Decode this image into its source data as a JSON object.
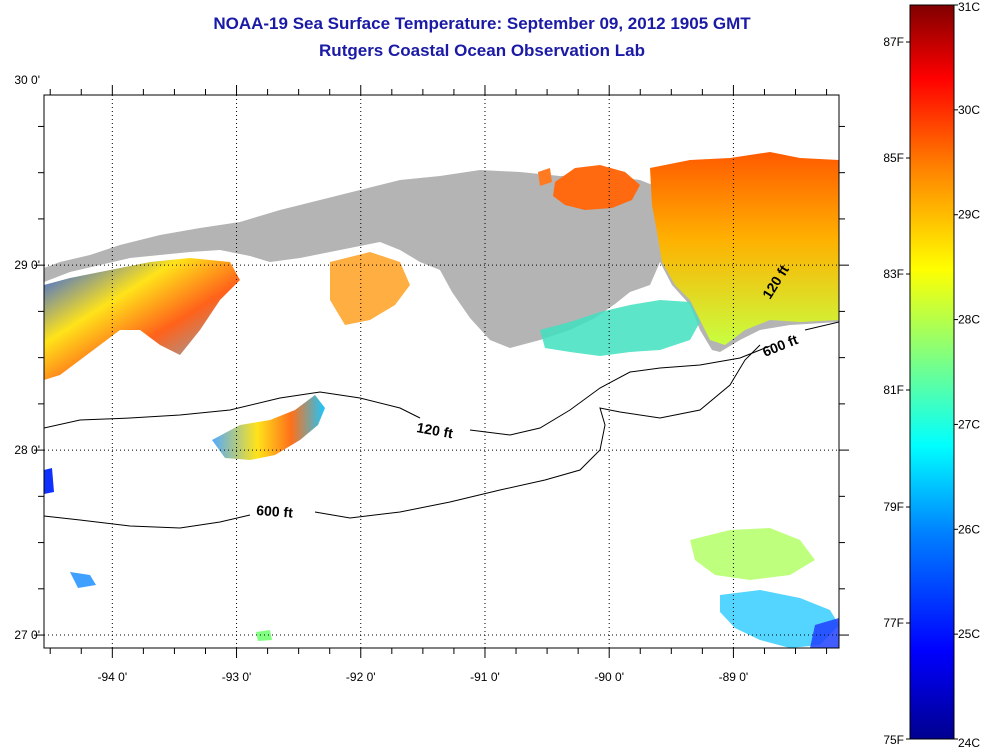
{
  "title_line1": "NOAA-19 Sea Surface Temperature:  September 09, 2012 1905 GMT",
  "title_line2": "Rutgers Coastal Ocean Observation Lab",
  "colors": {
    "land": "#b4b4b4",
    "title": "#1a1aa6",
    "colormap": [
      "#00008f",
      "#0000ff",
      "#0080ff",
      "#00ffff",
      "#80ff80",
      "#ffff00",
      "#ff8000",
      "#ff0000",
      "#800000"
    ]
  },
  "map": {
    "lon_range": [
      -94.55,
      -88.15
    ],
    "lat_range": [
      26.93,
      29.92
    ],
    "lon_ticks": [
      {
        "value": -94,
        "label": "-94 0'"
      },
      {
        "value": -93,
        "label": "-93 0'"
      },
      {
        "value": -92,
        "label": "-92 0'"
      },
      {
        "value": -91,
        "label": "-91 0'"
      },
      {
        "value": -90,
        "label": "-90 0'"
      },
      {
        "value": -89,
        "label": "-89 0'"
      }
    ],
    "lat_ticks": [
      {
        "value": 30,
        "label": "30 0'"
      },
      {
        "value": 29,
        "label": "29 0'"
      },
      {
        "value": 28,
        "label": "28 0'"
      },
      {
        "value": 27,
        "label": "27 0'"
      }
    ],
    "contour_labels": [
      "120 ft",
      "600 ft",
      "120 ft",
      "600 ft"
    ]
  },
  "colorbar": {
    "celsius": [
      "31C",
      "30C",
      "29C",
      "28C",
      "27C",
      "26C",
      "25C",
      "24C"
    ],
    "fahrenheit": [
      "87F",
      "85F",
      "83F",
      "81F",
      "79F",
      "77F",
      "75F"
    ]
  }
}
